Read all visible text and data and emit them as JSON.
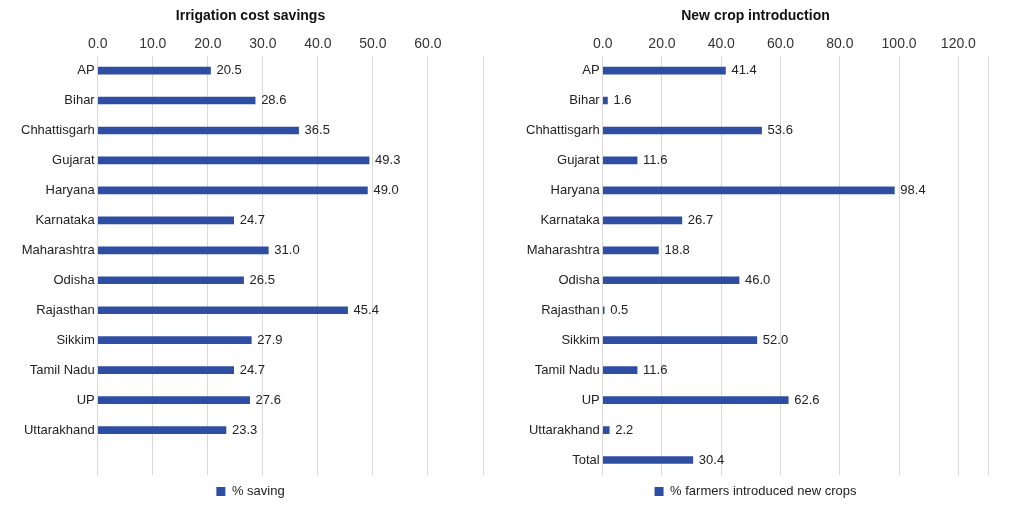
{
  "chart_data": [
    {
      "type": "bar",
      "orientation": "horizontal",
      "title": "Irrigation cost savings",
      "categories": [
        "AP",
        "Bihar",
        "Chhattisgarh",
        "Gujarat",
        "Haryana",
        "Karnataka",
        "Maharashtra",
        "Odisha",
        "Rajasthan",
        "Sikkim",
        "Tamil Nadu",
        "UP",
        "Uttarakhand",
        null
      ],
      "series": [
        {
          "name": "% saving",
          "color": "#2e4ea3",
          "values": [
            20.5,
            28.6,
            36.5,
            49.3,
            49.0,
            24.7,
            31.0,
            26.5,
            45.4,
            27.9,
            24.7,
            27.6,
            23.3,
            null
          ],
          "value_labels": [
            "20.5",
            "28.6",
            "36.5",
            "49.3",
            "49.0",
            "24.7",
            "31.0",
            "26.5",
            "45.4",
            "27.9",
            "24.7",
            "27.6",
            "23.3",
            null
          ]
        }
      ],
      "xlim": [
        0,
        70
      ],
      "xticks": [
        {
          "value": 0,
          "label": "0.0"
        },
        {
          "value": 10,
          "label": "10.0"
        },
        {
          "value": 20,
          "label": "20.0"
        },
        {
          "value": 30,
          "label": "30.0"
        },
        {
          "value": 40,
          "label": "40.0"
        },
        {
          "value": 50,
          "label": "50.0"
        },
        {
          "value": 60,
          "label": "60.0"
        },
        {
          "value": 70,
          "label": null
        }
      ],
      "grid": "x",
      "legend": "bottom"
    },
    {
      "type": "bar",
      "orientation": "horizontal",
      "title": "New crop introduction",
      "categories": [
        "AP",
        "Bihar",
        "Chhattisgarh",
        "Gujarat",
        "Haryana",
        "Karnataka",
        "Maharashtra",
        "Odisha",
        "Rajasthan",
        "Sikkim",
        "Tamil Nadu",
        "UP",
        "Uttarakhand",
        "Total"
      ],
      "series": [
        {
          "name": "% farmers introduced new crops",
          "color": "#2e4ea3",
          "values": [
            41.4,
            1.6,
            53.6,
            11.6,
            98.4,
            26.7,
            18.8,
            46.0,
            0.5,
            52.0,
            11.6,
            62.6,
            2.2,
            30.4
          ],
          "value_labels": [
            "41.4",
            "1.6",
            "53.6",
            "11.6",
            "98.4",
            "26.7",
            "18.8",
            "46.0",
            "0.5",
            "52.0",
            "11.6",
            "62.6",
            "2.2",
            "30.4"
          ]
        }
      ],
      "xlim": [
        0,
        130
      ],
      "xticks": [
        {
          "value": 0,
          "label": "0.0"
        },
        {
          "value": 20,
          "label": "20.0"
        },
        {
          "value": 40,
          "label": "40.0"
        },
        {
          "value": 60,
          "label": "60.0"
        },
        {
          "value": 80,
          "label": "80.0"
        },
        {
          "value": 100,
          "label": "100.0"
        },
        {
          "value": 120,
          "label": "120.0"
        },
        {
          "value": 130,
          "label": null
        }
      ],
      "grid": "x",
      "legend": "bottom"
    }
  ]
}
